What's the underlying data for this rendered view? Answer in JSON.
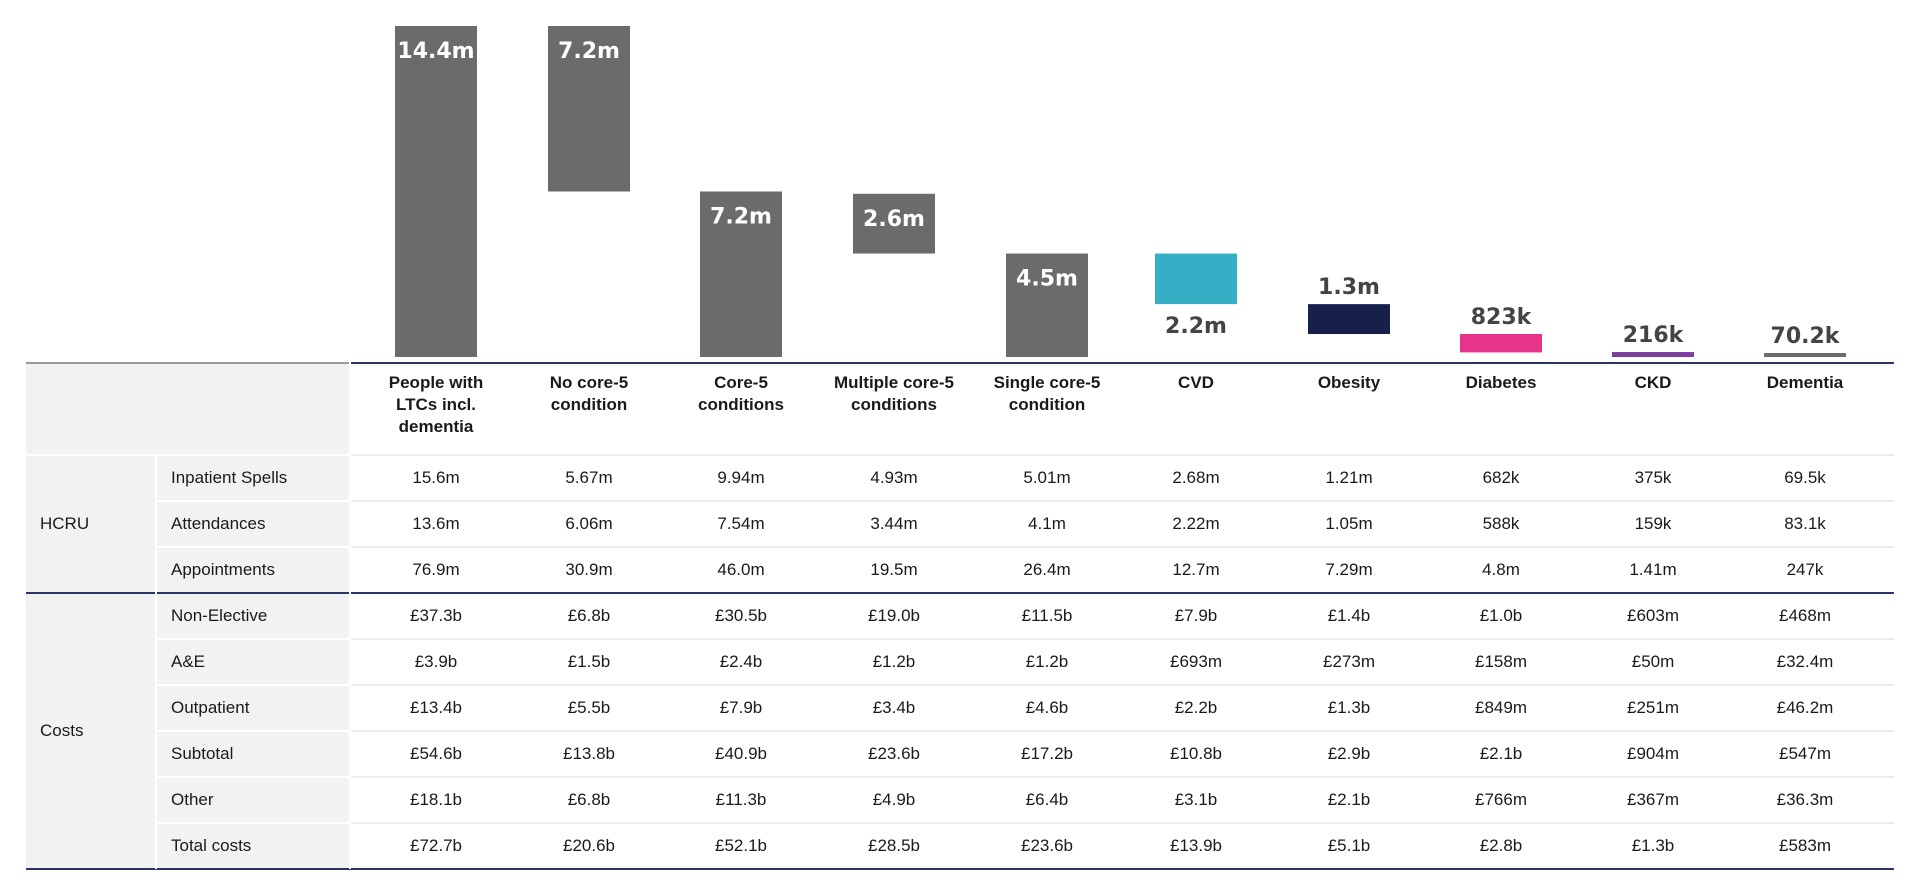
{
  "chart_data": {
    "type": "waterfall",
    "categories": [
      "People with LTCs incl. dementia",
      "No core-5 condition",
      "Core-5 conditions",
      "Multiple core-5 conditions",
      "Single core-5 condition",
      "CVD",
      "Obesity",
      "Diabetes",
      "CKD",
      "Dementia"
    ],
    "labels": [
      "14.4m",
      "7.2m",
      "7.2m",
      "2.6m",
      "4.5m",
      "2.2m",
      "1.3m",
      "823k",
      "216k",
      "70.2k"
    ],
    "values_millions": [
      14.4,
      7.2,
      7.2,
      2.6,
      4.5,
      2.2,
      1.3,
      0.823,
      0.216,
      0.0702
    ],
    "bar_ranges_millions": [
      [
        0,
        14.4
      ],
      [
        7.2,
        14.4
      ],
      [
        0,
        7.2
      ],
      [
        4.5,
        7.1
      ],
      [
        0,
        4.5
      ],
      [
        2.3,
        4.5
      ],
      [
        1.0,
        2.3
      ],
      [
        0.2,
        1.0
      ],
      [
        0.0,
        0.216
      ],
      [
        0,
        0.0702
      ]
    ],
    "colors": [
      "#6b6b6b",
      "#6b6b6b",
      "#6b6b6b",
      "#6b6b6b",
      "#6b6b6b",
      "#35aec6",
      "#16204a",
      "#e8338b",
      "#7a3fa0",
      "#6b6b6b"
    ],
    "label_position": [
      "inside",
      "inside",
      "inside",
      "inside",
      "inside",
      "below",
      "above",
      "above",
      "above",
      "above"
    ],
    "ylim": [
      0,
      14.4
    ]
  },
  "table": {
    "headers": [
      "People with LTCs incl. dementia",
      "No core-5 condition",
      "Core-5 conditions",
      "Multiple core-5 conditions",
      "Single core-5 condition",
      "CVD",
      "Obesity",
      "Diabetes",
      "CKD",
      "Dementia"
    ],
    "groups": [
      {
        "name": "HCRU",
        "rows": [
          {
            "label": "Inpatient Spells",
            "values": [
              "15.6m",
              "5.67m",
              "9.94m",
              "4.93m",
              "5.01m",
              "2.68m",
              "1.21m",
              "682k",
              "375k",
              "69.5k"
            ]
          },
          {
            "label": "Attendances",
            "values": [
              "13.6m",
              "6.06m",
              "7.54m",
              "3.44m",
              "4.1m",
              "2.22m",
              "1.05m",
              "588k",
              "159k",
              "83.1k"
            ]
          },
          {
            "label": "Appointments",
            "values": [
              "76.9m",
              "30.9m",
              "46.0m",
              "19.5m",
              "26.4m",
              "12.7m",
              "7.29m",
              "4.8m",
              "1.41m",
              "247k"
            ]
          }
        ]
      },
      {
        "name": "Costs",
        "rows": [
          {
            "label": "Non-Elective",
            "values": [
              "£37.3b",
              "£6.8b",
              "£30.5b",
              "£19.0b",
              "£11.5b",
              "£7.9b",
              "£1.4b",
              "£1.0b",
              "£603m",
              "£468m"
            ]
          },
          {
            "label": "A&E",
            "values": [
              "£3.9b",
              "£1.5b",
              "£2.4b",
              "£1.2b",
              "£1.2b",
              "£693m",
              "£273m",
              "£158m",
              "£50m",
              "£32.4m"
            ]
          },
          {
            "label": "Outpatient",
            "values": [
              "£13.4b",
              "£5.5b",
              "£7.9b",
              "£3.4b",
              "£4.6b",
              "£2.2b",
              "£1.3b",
              "£849m",
              "£251m",
              "£46.2m"
            ]
          },
          {
            "label": "Subtotal",
            "values": [
              "£54.6b",
              "£13.8b",
              "£40.9b",
              "£23.6b",
              "£17.2b",
              "£10.8b",
              "£2.9b",
              "£2.1b",
              "£904m",
              "£547m"
            ]
          },
          {
            "label": "Other",
            "values": [
              "£18.1b",
              "£6.8b",
              "£11.3b",
              "£4.9b",
              "£6.4b",
              "£3.1b",
              "£2.1b",
              "£766m",
              "£367m",
              "£36.3m"
            ]
          },
          {
            "label": "Total costs",
            "values": [
              "£72.7b",
              "£20.6b",
              "£52.1b",
              "£28.5b",
              "£23.6b",
              "£13.9b",
              "£5.1b",
              "£2.8b",
              "£1.3b",
              "£583m"
            ]
          }
        ]
      }
    ]
  }
}
